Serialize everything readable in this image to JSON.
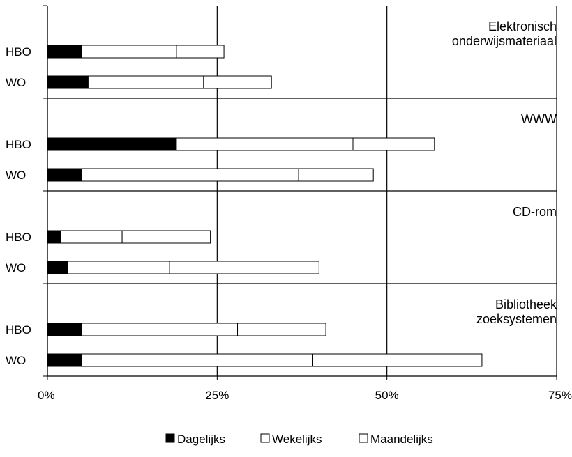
{
  "chart_data": {
    "type": "bar",
    "orientation": "horizontal",
    "stacked": true,
    "xlim": [
      0,
      75
    ],
    "x_ticks": [
      {
        "value": 0,
        "label": "0%"
      },
      {
        "value": 25,
        "label": "25%"
      },
      {
        "value": 50,
        "label": "50%"
      },
      {
        "value": 75,
        "label": "75%"
      }
    ],
    "grid": "vertical",
    "legend_position": "bottom",
    "series": [
      {
        "name": "Dagelijks",
        "color": "#000000"
      },
      {
        "name": "Wekelijks",
        "color": "#ffffff"
      },
      {
        "name": "Maandelijks",
        "color": "#ffffff"
      }
    ],
    "groups": [
      {
        "label_lines": [
          "Elektronisch",
          "onderwijsmateriaal"
        ],
        "bars": [
          {
            "label": "HBO",
            "values": [
              5,
              14,
              7
            ]
          },
          {
            "label": "WO",
            "values": [
              6,
              17,
              10
            ]
          }
        ]
      },
      {
        "label_lines": [
          "WWW"
        ],
        "bars": [
          {
            "label": "HBO",
            "values": [
              19,
              26,
              12
            ]
          },
          {
            "label": "WO",
            "values": [
              5,
              32,
              11
            ]
          }
        ]
      },
      {
        "label_lines": [
          "CD-rom"
        ],
        "bars": [
          {
            "label": "HBO",
            "values": [
              2,
              9,
              13
            ]
          },
          {
            "label": "WO",
            "values": [
              3,
              15,
              22
            ]
          }
        ]
      },
      {
        "label_lines": [
          "Bibliotheek",
          "zoeksystemen"
        ],
        "bars": [
          {
            "label": "HBO",
            "values": [
              5,
              23,
              13
            ]
          },
          {
            "label": "WO",
            "values": [
              5,
              34,
              25
            ]
          }
        ]
      }
    ]
  }
}
